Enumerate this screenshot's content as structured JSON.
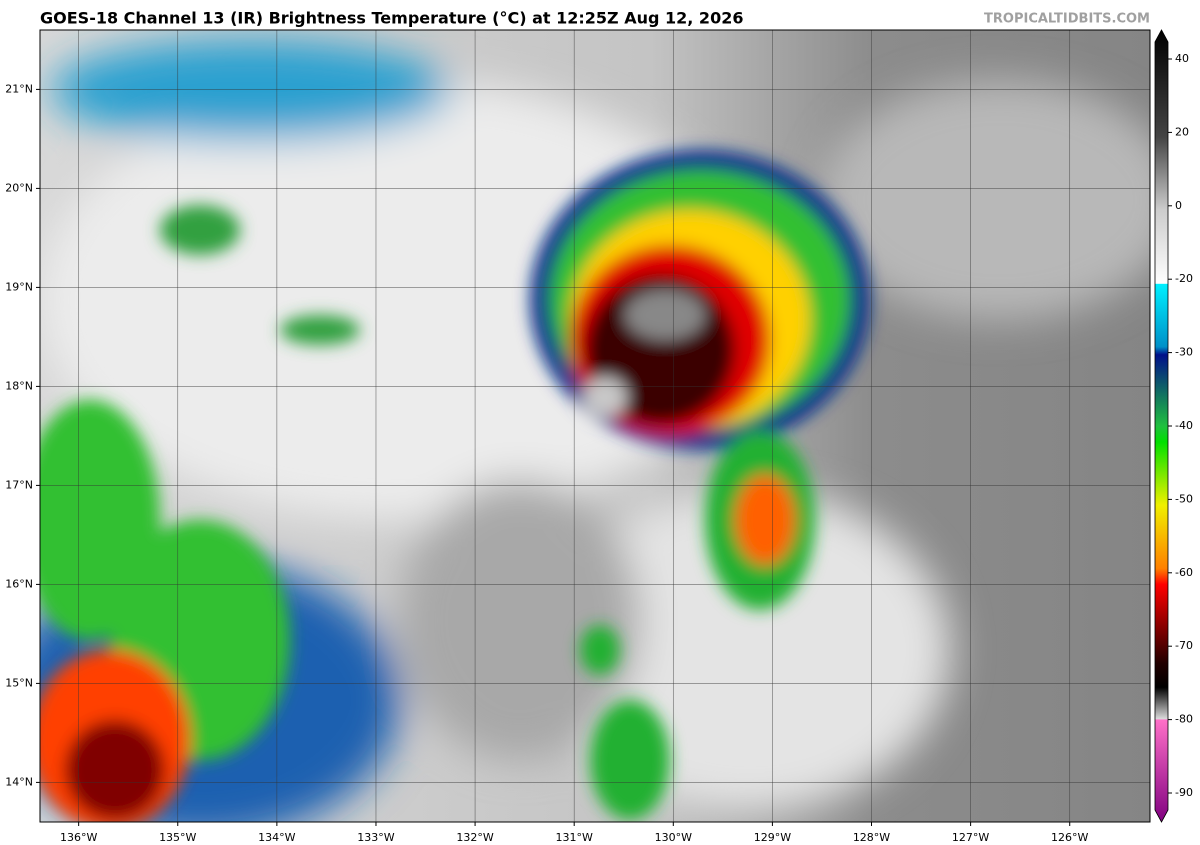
{
  "map": {
    "title": "GOES-18 Channel 13 (IR) Brightness Temperature (°C) at 12:25Z Aug 12, 2026",
    "credit": "TROPICALTIDBITS.COM",
    "lonlim": [
      -136.39,
      -125.19
    ],
    "latlim": [
      13.6,
      21.6
    ],
    "lat_ticks": [
      {
        "value": 21,
        "label": "21°N"
      },
      {
        "value": 20,
        "label": "20°N"
      },
      {
        "value": 19,
        "label": "19°N"
      },
      {
        "value": 18,
        "label": "18°N"
      },
      {
        "value": 17,
        "label": "17°N"
      },
      {
        "value": 16,
        "label": "16°N"
      },
      {
        "value": 15,
        "label": "15°N"
      },
      {
        "value": 14,
        "label": "14°N"
      }
    ],
    "lon_ticks": [
      {
        "value": -136,
        "label": "136°W"
      },
      {
        "value": -135,
        "label": "135°W"
      },
      {
        "value": -134,
        "label": "134°W"
      },
      {
        "value": -133,
        "label": "133°W"
      },
      {
        "value": -132,
        "label": "132°W"
      },
      {
        "value": -131,
        "label": "131°W"
      },
      {
        "value": -130,
        "label": "130°W"
      },
      {
        "value": -129,
        "label": "129°W"
      },
      {
        "value": -128,
        "label": "128°W"
      },
      {
        "value": -127,
        "label": "127°W"
      },
      {
        "value": -126,
        "label": "126°W"
      }
    ]
  },
  "colorbar": {
    "ticks": [
      40,
      20,
      0,
      -20,
      -30,
      -40,
      -50,
      -60,
      -70,
      -80,
      -90
    ]
  }
}
